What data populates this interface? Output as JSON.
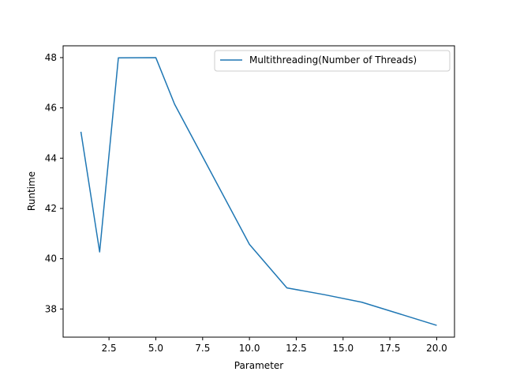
{
  "chart_data": {
    "type": "line",
    "xlabel": "Parameter",
    "ylabel": "Runtime",
    "xlim": [
      0.05,
      20.95
    ],
    "ylim": [
      36.88,
      48.47
    ],
    "xticks": [
      2.5,
      5.0,
      7.5,
      10.0,
      12.5,
      15.0,
      17.5,
      20.0
    ],
    "xtick_labels": [
      "2.5",
      "5.0",
      "7.5",
      "10.0",
      "12.5",
      "15.0",
      "17.5",
      "20.0"
    ],
    "yticks": [
      38,
      40,
      42,
      44,
      46,
      48
    ],
    "ytick_labels": [
      "38",
      "40",
      "42",
      "44",
      "46",
      "48"
    ],
    "grid": false,
    "legend_position": "top-right",
    "series": [
      {
        "name": "Multithreading(Number of Threads)",
        "color": "#1f77b4",
        "x": [
          1,
          2,
          3,
          5,
          6,
          10,
          12,
          14,
          16,
          20
        ],
        "y": [
          45.05,
          40.27,
          47.99,
          48.0,
          46.15,
          40.57,
          38.84,
          38.57,
          38.27,
          37.35
        ]
      }
    ]
  }
}
